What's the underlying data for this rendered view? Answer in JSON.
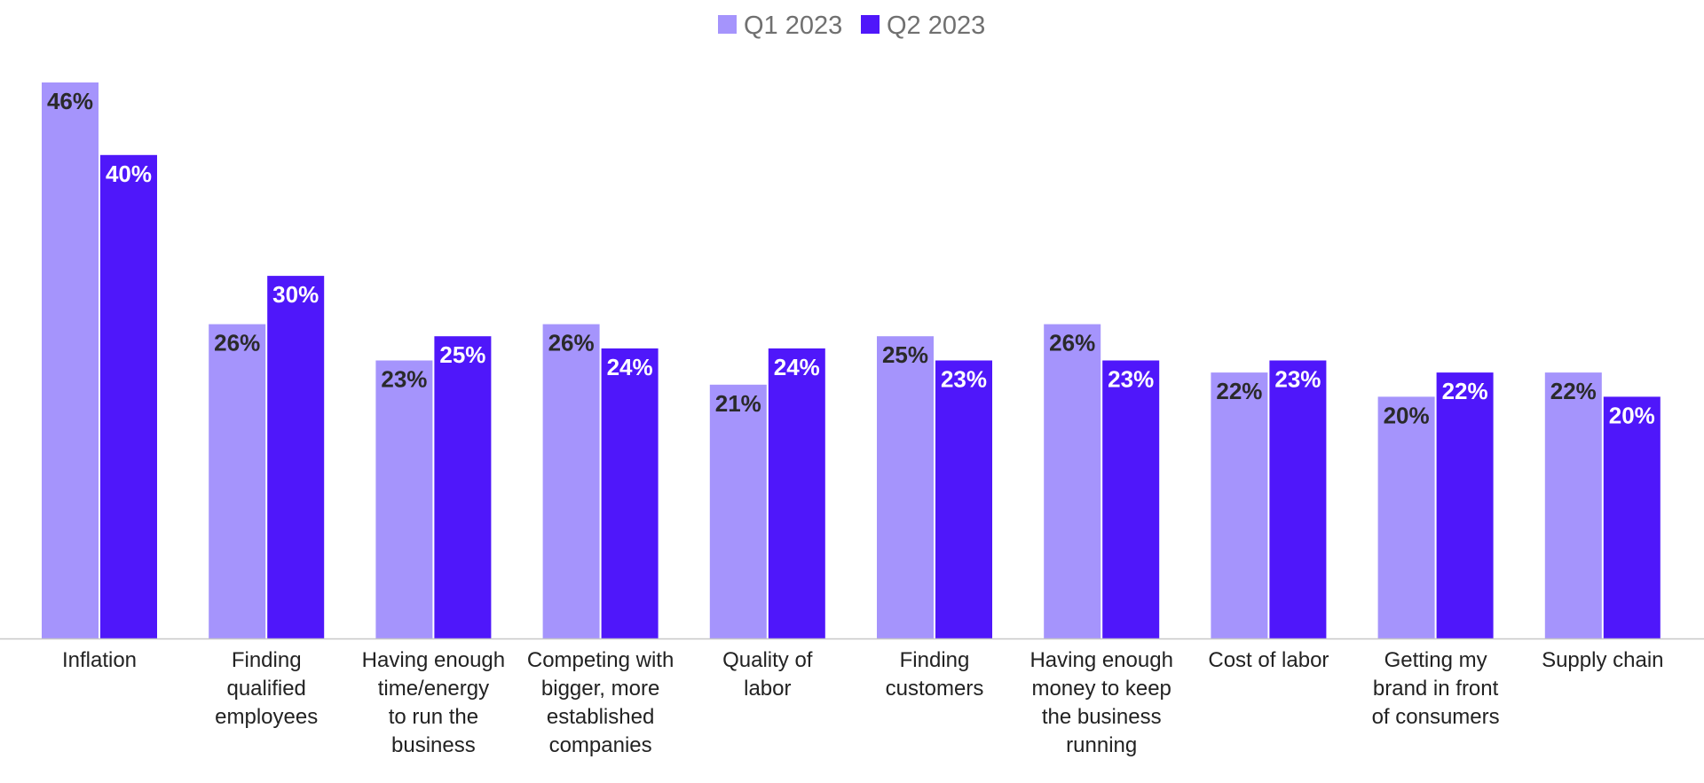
{
  "chart_data": {
    "type": "bar",
    "title": "",
    "xlabel": "",
    "ylabel": "",
    "ylim": [
      0,
      46
    ],
    "grid": false,
    "legend_position": "top-center",
    "categories": [
      "Inflation",
      "Finding qualified employees",
      "Having enough time/energy to run the business",
      "Competing with bigger, more established companies",
      "Quality of labor",
      "Finding customers",
      "Having enough money to keep the business running",
      "Cost of labor",
      "Getting my brand in front of consumers",
      "Supply chain"
    ],
    "category_lines": [
      [
        "Inflation"
      ],
      [
        "Finding",
        "qualified",
        "employees"
      ],
      [
        "Having enough",
        "time/energy",
        "to run the",
        "business"
      ],
      [
        "Competing with",
        "bigger, more",
        "established",
        "companies"
      ],
      [
        "Quality of",
        "labor"
      ],
      [
        "Finding",
        "customers"
      ],
      [
        "Having enough",
        "money to keep",
        "the business",
        "running"
      ],
      [
        "Cost of labor"
      ],
      [
        "Getting my",
        "brand in front",
        "of consumers"
      ],
      [
        "Supply chain"
      ]
    ],
    "series": [
      {
        "name": "Q1 2023",
        "color": "#a594fc",
        "label_color": "#2a2a2a",
        "values": [
          46,
          26,
          23,
          26,
          21,
          25,
          26,
          22,
          20,
          22
        ],
        "labels": [
          "46%",
          "26%",
          "23%",
          "26%",
          "21%",
          "25%",
          "26%",
          "22%",
          "20%",
          "22%"
        ]
      },
      {
        "name": "Q2 2023",
        "color": "#4f17fa",
        "label_color": "#ffffff",
        "values": [
          40,
          30,
          25,
          24,
          24,
          23,
          23,
          23,
          22,
          20
        ],
        "labels": [
          "40%",
          "30%",
          "25%",
          "24%",
          "24%",
          "23%",
          "23%",
          "23%",
          "22%",
          "20%"
        ]
      }
    ],
    "axis_color": "#c8c8c8"
  }
}
